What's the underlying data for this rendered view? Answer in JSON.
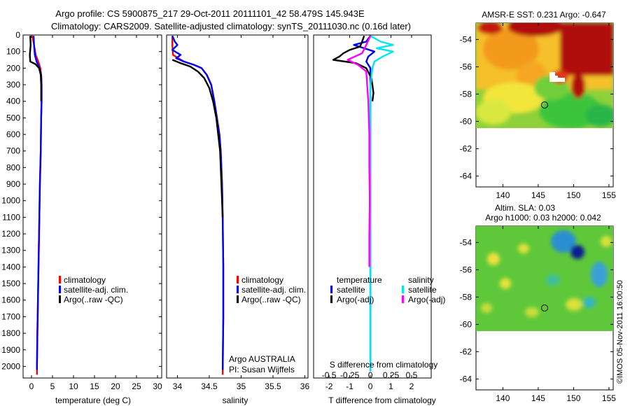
{
  "title": {
    "line1": "Argo profile: CS 5900875_217 29-Oct-2011 20111101_42 58.479S 145.943E",
    "line2": "Climatology: CARS2009. Satellite-adjusted climatology: synTS_20111030.nc (0.16d later)"
  },
  "footer": {
    "credit": "©IMOS 05-Nov-2011 16:00:50",
    "argo_source": "Argo AUSTRALIA",
    "pi": "PI: Susan Wijffels"
  },
  "colors": {
    "climatology": "#ff0000",
    "satellite": "#0000ff",
    "argo": "#000000",
    "sat_salinity": "#00e5ee",
    "argo_salinity": "#ff00ff"
  },
  "chart_data": [
    {
      "type": "line",
      "name": "temperature",
      "xlabel": "temperature (deg C)",
      "ylabel": "",
      "xlim": [
        -2,
        31
      ],
      "ylim": [
        2070,
        0
      ],
      "xticks": [
        0,
        5,
        10,
        15,
        20,
        25,
        30
      ],
      "yticks": [
        0,
        100,
        200,
        300,
        400,
        500,
        600,
        700,
        800,
        900,
        1000,
        1100,
        1200,
        1300,
        1400,
        1500,
        1600,
        1700,
        1800,
        1900,
        2000
      ],
      "legend": [
        "climatology",
        "satellite-adj. clim.",
        "Argo(..raw -QC)"
      ],
      "series": [
        {
          "name": "climatology",
          "color": "#ff0000",
          "points": [
            [
              0.2,
              5
            ],
            [
              0.6,
              60
            ],
            [
              1.0,
              120
            ],
            [
              1.6,
              160
            ],
            [
              2.1,
              200
            ],
            [
              2.3,
              240
            ],
            [
              2.4,
              300
            ],
            [
              2.4,
              400
            ],
            [
              2.3,
              500
            ],
            [
              2.2,
              700
            ],
            [
              2.0,
              900
            ],
            [
              1.8,
              1200
            ],
            [
              1.6,
              1500
            ],
            [
              1.4,
              1800
            ],
            [
              1.3,
              2000
            ],
            [
              1.3,
              2050
            ]
          ]
        },
        {
          "name": "satellite-adj. clim.",
          "color": "#0000ff",
          "points": [
            [
              0.5,
              5
            ],
            [
              0.6,
              60
            ],
            [
              0.8,
              120
            ],
            [
              1.2,
              160
            ],
            [
              1.9,
              200
            ],
            [
              2.3,
              240
            ],
            [
              2.4,
              300
            ],
            [
              2.4,
              400
            ],
            [
              2.3,
              500
            ],
            [
              2.2,
              700
            ],
            [
              2.0,
              900
            ],
            [
              1.8,
              1200
            ],
            [
              1.6,
              1500
            ],
            [
              1.4,
              1800
            ],
            [
              1.3,
              2000
            ],
            [
              1.3,
              2020
            ]
          ]
        },
        {
          "name": "Argo(..raw -QC)",
          "color": "#000000",
          "points": [
            [
              -0.3,
              5
            ],
            [
              -0.2,
              60
            ],
            [
              -0.4,
              120
            ],
            [
              -0.3,
              160
            ],
            [
              0.9,
              175
            ],
            [
              1.8,
              200
            ],
            [
              2.2,
              240
            ],
            [
              2.3,
              300
            ],
            [
              2.3,
              400
            ]
          ]
        }
      ]
    },
    {
      "type": "line",
      "name": "salinity",
      "xlabel": "salinity",
      "ylabel": "",
      "xlim": [
        33.83,
        36.05
      ],
      "ylim": [
        2070,
        0
      ],
      "xticks": [
        34,
        34.5,
        35,
        35.5,
        36
      ],
      "xtick_labels": [
        "34",
        "34.5",
        "35",
        "35.5",
        "36"
      ],
      "legend": [
        "climatology",
        "satellite-adj. clim.",
        "Argo(..raw -QC)"
      ],
      "series": [
        {
          "name": "climatology",
          "color": "#ff0000",
          "points": [
            [
              33.92,
              5
            ],
            [
              33.92,
              60
            ],
            [
              33.93,
              120
            ],
            [
              34.1,
              160
            ],
            [
              34.26,
              180
            ],
            [
              34.38,
              200
            ],
            [
              34.46,
              240
            ],
            [
              34.53,
              300
            ],
            [
              34.58,
              400
            ],
            [
              34.62,
              500
            ],
            [
              34.66,
              600
            ],
            [
              34.68,
              700
            ],
            [
              34.7,
              900
            ],
            [
              34.71,
              1100
            ],
            [
              34.72,
              1400
            ],
            [
              34.72,
              1700
            ],
            [
              34.71,
              2050
            ]
          ]
        },
        {
          "name": "satellite-adj. clim.",
          "color": "#0000ff",
          "points": [
            [
              33.92,
              5
            ],
            [
              33.96,
              40
            ],
            [
              34.0,
              60
            ],
            [
              33.92,
              90
            ],
            [
              34.05,
              120
            ],
            [
              33.98,
              140
            ],
            [
              34.1,
              160
            ],
            [
              34.26,
              180
            ],
            [
              34.38,
              200
            ],
            [
              34.46,
              240
            ],
            [
              34.53,
              300
            ],
            [
              34.58,
              400
            ],
            [
              34.62,
              500
            ],
            [
              34.66,
              600
            ],
            [
              34.68,
              700
            ],
            [
              34.7,
              900
            ],
            [
              34.71,
              1100
            ],
            [
              34.72,
              1400
            ],
            [
              34.72,
              1700
            ],
            [
              34.71,
              2020
            ]
          ]
        },
        {
          "name": "Argo(..raw -QC)",
          "color": "#000000",
          "points": [
            [
              33.92,
              150
            ],
            [
              34.05,
              170
            ],
            [
              34.2,
              190
            ],
            [
              34.32,
              220
            ],
            [
              34.42,
              260
            ],
            [
              34.5,
              320
            ],
            [
              34.56,
              400
            ],
            [
              34.61,
              500
            ],
            [
              34.64,
              600
            ],
            [
              34.67,
              700
            ],
            [
              34.69,
              900
            ],
            [
              34.71,
              1100
            ]
          ]
        }
      ]
    },
    {
      "type": "line",
      "name": "difference from climatology",
      "xlabel": "T difference from climatology",
      "xlabel_top": "S difference from climatology",
      "xlim": [
        -2.75,
        2.95
      ],
      "ylim": [
        2070,
        0
      ],
      "xticks": [
        -2,
        -1,
        0,
        1,
        2
      ],
      "s_ticks": [
        -0.5,
        -0.25,
        0,
        0.25,
        0.5
      ],
      "s_tick_labels": [
        "-0.5",
        "-0.25",
        "0",
        "0.25",
        "0.5"
      ],
      "legend_headers": [
        "temperature",
        "salinity"
      ],
      "legend": [
        "satellite",
        "Argo(-adj)",
        "satellite",
        "Argo(-adj)"
      ],
      "series": [
        {
          "name": "satellite",
          "color": "#0000ff",
          "points": [
            [
              0,
              5
            ],
            [
              -0.2,
              40
            ],
            [
              -0.8,
              60
            ],
            [
              -0.3,
              80
            ],
            [
              0.2,
              100
            ],
            [
              -0.1,
              130
            ],
            [
              -0.2,
              160
            ],
            [
              0.0,
              200
            ],
            [
              0.0,
              300
            ],
            [
              0.0,
              500
            ],
            [
              0.0,
              1000
            ],
            [
              0.0,
              1500
            ],
            [
              0.0,
              2000
            ],
            [
              0.0,
              2030
            ]
          ]
        },
        {
          "name": "Argo(-adj)",
          "color": "#000000",
          "points": [
            [
              -0.3,
              5
            ],
            [
              -0.4,
              40
            ],
            [
              -0.5,
              70
            ],
            [
              -1.0,
              90
            ],
            [
              -1.3,
              110
            ],
            [
              -1.5,
              130
            ],
            [
              -1.8,
              150
            ],
            [
              -0.7,
              170
            ],
            [
              -0.2,
              200
            ],
            [
              0.05,
              260
            ],
            [
              0.1,
              300
            ],
            [
              0.15,
              350
            ],
            [
              0.1,
              400
            ]
          ]
        },
        {
          "name": "satellite",
          "color": "#00e5ee",
          "points": [
            [
              0,
              5
            ],
            [
              0.5,
              40
            ],
            [
              1.1,
              60
            ],
            [
              0.3,
              80
            ],
            [
              1.1,
              100
            ],
            [
              0.6,
              130
            ],
            [
              0.2,
              160
            ],
            [
              0.1,
              200
            ],
            [
              0.0,
              300
            ],
            [
              0.0,
              500
            ],
            [
              0.0,
              1000
            ],
            [
              0.0,
              1500
            ],
            [
              0.0,
              2000
            ],
            [
              0.0,
              2030
            ]
          ]
        },
        {
          "name": "Argo(-adj)",
          "color": "#ff00ff",
          "points": [
            [
              0.0,
              5
            ],
            [
              -0.2,
              60
            ],
            [
              -0.4,
              110
            ],
            [
              -1.1,
              150
            ],
            [
              -0.6,
              180
            ],
            [
              -0.2,
              220
            ],
            [
              -0.1,
              400
            ],
            [
              -0.05,
              600
            ],
            [
              -0.05,
              800
            ],
            [
              -0.03,
              1000
            ],
            [
              -0.05,
              1200
            ],
            [
              -0.05,
              1400
            ]
          ]
        }
      ]
    },
    {
      "type": "heatmap",
      "name": "sst-map",
      "title": "AMSR-E SST: 0.231 Argo: -0.647",
      "xlim": [
        136.2,
        155.6
      ],
      "ylim": [
        -64.8,
        -52.8
      ],
      "xticks": [
        140,
        145,
        150,
        155
      ],
      "yticks": [
        -54,
        -56,
        -58,
        -60,
        -62,
        -64
      ],
      "argo_position": [
        145.943,
        -58.479
      ]
    },
    {
      "type": "heatmap",
      "name": "sla-map",
      "title_line1": "Altim. SLA: 0.03",
      "title_line2": "Argo h1000: 0.03 h2000: 0.042",
      "xlim": [
        136.2,
        155.6
      ],
      "ylim": [
        -64.8,
        -52.8
      ],
      "xticks": [
        140,
        145,
        150,
        155
      ],
      "yticks": [
        -54,
        -56,
        -58,
        -60,
        -62,
        -64
      ],
      "argo_position": [
        145.943,
        -58.479
      ]
    }
  ]
}
